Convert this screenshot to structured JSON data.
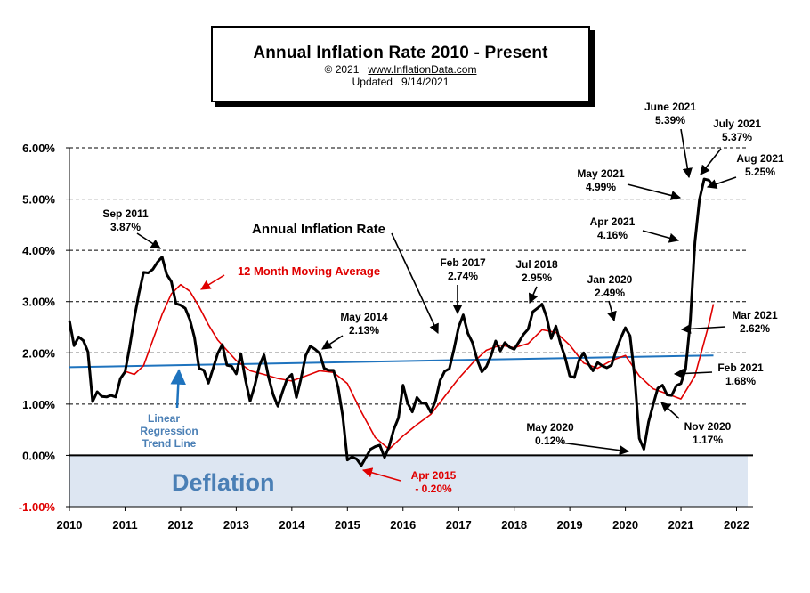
{
  "header": {
    "title": "Annual  Inflation Rate 2010 - Present",
    "copyright": "© 2021",
    "url": "www.InflationData.com",
    "updated_label": "Updated",
    "updated_date": "9/14/2021"
  },
  "chart_data": {
    "type": "line",
    "title": "Annual  Inflation Rate 2010 - Present",
    "xlabel": "",
    "ylabel": "",
    "xlim": [
      2010,
      2022.2
    ],
    "ylim": [
      -1.0,
      6.0
    ],
    "grid": "horizontal dashed",
    "y_ticks": [
      "-1.00%",
      "0.00%",
      "1.00%",
      "2.00%",
      "3.00%",
      "4.00%",
      "5.00%",
      "6.00%"
    ],
    "x_ticks": [
      "2010",
      "2011",
      "2012",
      "2013",
      "2014",
      "2015",
      "2016",
      "2017",
      "2018",
      "2019",
      "2020",
      "2021",
      "2022"
    ],
    "series": [
      {
        "name": "Annual Inflation Rate",
        "color": "#000000",
        "x": [
          2010.0,
          2010.083,
          2010.167,
          2010.25,
          2010.333,
          2010.417,
          2010.5,
          2010.583,
          2010.667,
          2010.75,
          2010.833,
          2010.917,
          2011.0,
          2011.083,
          2011.167,
          2011.25,
          2011.333,
          2011.417,
          2011.5,
          2011.583,
          2011.667,
          2011.75,
          2011.833,
          2011.917,
          2012.0,
          2012.083,
          2012.167,
          2012.25,
          2012.333,
          2012.417,
          2012.5,
          2012.583,
          2012.667,
          2012.75,
          2012.833,
          2012.917,
          2013.0,
          2013.083,
          2013.167,
          2013.25,
          2013.333,
          2013.417,
          2013.5,
          2013.583,
          2013.667,
          2013.75,
          2013.833,
          2013.917,
          2014.0,
          2014.083,
          2014.167,
          2014.25,
          2014.333,
          2014.417,
          2014.5,
          2014.583,
          2014.667,
          2014.75,
          2014.833,
          2014.917,
          2015.0,
          2015.083,
          2015.167,
          2015.25,
          2015.333,
          2015.417,
          2015.5,
          2015.583,
          2015.667,
          2015.75,
          2015.833,
          2015.917,
          2016.0,
          2016.083,
          2016.167,
          2016.25,
          2016.333,
          2016.417,
          2016.5,
          2016.583,
          2016.667,
          2016.75,
          2016.833,
          2016.917,
          2017.0,
          2017.083,
          2017.167,
          2017.25,
          2017.333,
          2017.417,
          2017.5,
          2017.583,
          2017.667,
          2017.75,
          2017.833,
          2017.917,
          2018.0,
          2018.083,
          2018.167,
          2018.25,
          2018.333,
          2018.417,
          2018.5,
          2018.583,
          2018.667,
          2018.75,
          2018.833,
          2018.917,
          2019.0,
          2019.083,
          2019.167,
          2019.25,
          2019.333,
          2019.417,
          2019.5,
          2019.583,
          2019.667,
          2019.75,
          2019.833,
          2019.917,
          2020.0,
          2020.083,
          2020.167,
          2020.25,
          2020.333,
          2020.417,
          2020.5,
          2020.583,
          2020.667,
          2020.75,
          2020.833,
          2020.917,
          2021.0,
          2021.083,
          2021.167,
          2021.25,
          2021.333,
          2021.417,
          2021.5,
          2021.583
        ],
        "values": [
          2.63,
          2.14,
          2.31,
          2.24,
          2.02,
          1.05,
          1.24,
          1.15,
          1.14,
          1.17,
          1.14,
          1.5,
          1.63,
          2.11,
          2.68,
          3.16,
          3.57,
          3.56,
          3.63,
          3.77,
          3.87,
          3.53,
          3.39,
          2.96,
          2.93,
          2.87,
          2.65,
          2.3,
          1.7,
          1.66,
          1.41,
          1.69,
          1.99,
          2.16,
          1.76,
          1.74,
          1.59,
          1.98,
          1.47,
          1.06,
          1.36,
          1.75,
          1.96,
          1.52,
          1.18,
          0.96,
          1.24,
          1.5,
          1.58,
          1.13,
          1.51,
          1.95,
          2.13,
          2.07,
          1.99,
          1.7,
          1.66,
          1.66,
          1.32,
          0.76,
          -0.09,
          -0.03,
          -0.07,
          -0.2,
          -0.04,
          0.12,
          0.17,
          0.2,
          -0.04,
          0.17,
          0.5,
          0.73,
          1.37,
          1.02,
          0.85,
          1.13,
          1.02,
          1.01,
          0.84,
          1.06,
          1.46,
          1.64,
          1.69,
          2.07,
          2.5,
          2.74,
          2.38,
          2.2,
          1.87,
          1.63,
          1.73,
          1.94,
          2.23,
          2.04,
          2.2,
          2.11,
          2.07,
          2.21,
          2.36,
          2.46,
          2.8,
          2.87,
          2.95,
          2.7,
          2.28,
          2.52,
          2.18,
          1.91,
          1.55,
          1.52,
          1.86,
          2.0,
          1.79,
          1.65,
          1.81,
          1.75,
          1.71,
          1.76,
          2.05,
          2.29,
          2.49,
          2.33,
          1.54,
          0.33,
          0.12,
          0.65,
          0.99,
          1.31,
          1.37,
          1.18,
          1.17,
          1.36,
          1.4,
          1.68,
          2.62,
          4.16,
          4.99,
          5.39,
          5.37,
          5.25
        ]
      },
      {
        "name": "12 Month Moving Average",
        "color": "#e00000",
        "x": [
          2011.0,
          2011.167,
          2011.333,
          2011.5,
          2011.667,
          2011.833,
          2012.0,
          2012.167,
          2012.333,
          2012.5,
          2012.667,
          2012.833,
          2013.0,
          2013.25,
          2013.5,
          2013.75,
          2014.0,
          2014.25,
          2014.5,
          2014.75,
          2015.0,
          2015.25,
          2015.5,
          2015.75,
          2016.0,
          2016.25,
          2016.5,
          2016.75,
          2017.0,
          2017.25,
          2017.5,
          2017.75,
          2018.0,
          2018.25,
          2018.5,
          2018.75,
          2019.0,
          2019.25,
          2019.5,
          2019.75,
          2020.0,
          2020.25,
          2020.5,
          2020.75,
          2021.0,
          2021.25,
          2021.5,
          2021.583
        ],
        "values": [
          1.64,
          1.58,
          1.75,
          2.25,
          2.75,
          3.15,
          3.33,
          3.2,
          2.9,
          2.55,
          2.25,
          2.05,
          1.85,
          1.65,
          1.58,
          1.5,
          1.45,
          1.55,
          1.65,
          1.62,
          1.4,
          0.85,
          0.35,
          0.12,
          0.38,
          0.6,
          0.8,
          1.15,
          1.5,
          1.8,
          2.05,
          2.15,
          2.1,
          2.18,
          2.45,
          2.4,
          2.15,
          1.8,
          1.7,
          1.85,
          1.95,
          1.55,
          1.3,
          1.2,
          1.1,
          1.55,
          2.55,
          2.95
        ]
      },
      {
        "name": "Linear Regression Trend Line",
        "color": "#1e73be",
        "x": [
          2010.0,
          2021.583
        ],
        "values": [
          1.72,
          1.95
        ]
      }
    ],
    "annotations": [
      {
        "label": "Sep 2011",
        "value": "3.87%"
      },
      {
        "label": "May 2014",
        "value": "2.13%"
      },
      {
        "label": "Feb 2017",
        "value": "2.74%"
      },
      {
        "label": "Jul 2018",
        "value": "2.95%"
      },
      {
        "label": "Jan 2020",
        "value": "2.49%"
      },
      {
        "label": "May 2021",
        "value": "4.99%"
      },
      {
        "label": "June 2021",
        "value": "5.39%"
      },
      {
        "label": "July 2021",
        "value": "5.37%"
      },
      {
        "label": "Aug 2021",
        "value": "5.25%"
      },
      {
        "label": "Apr 2021",
        "value": "4.16%"
      },
      {
        "label": "Mar 2021",
        "value": "2.62%"
      },
      {
        "label": "Feb 2021",
        "value": "1.68%"
      },
      {
        "label": "Nov 2020",
        "value": "1.17%"
      },
      {
        "label": "May 2020",
        "value": "0.12%"
      },
      {
        "label": "Apr 2015",
        "value": "- 0.20%"
      }
    ],
    "series_labels": {
      "inflation": "Annual Inflation Rate",
      "moving_avg": "12 Month Moving Average",
      "trend_line1": "Linear",
      "trend_line2": "Regression",
      "trend_line3": "Trend Line"
    },
    "deflation_label": "Deflation",
    "deflation_color": "#dde6f2"
  }
}
